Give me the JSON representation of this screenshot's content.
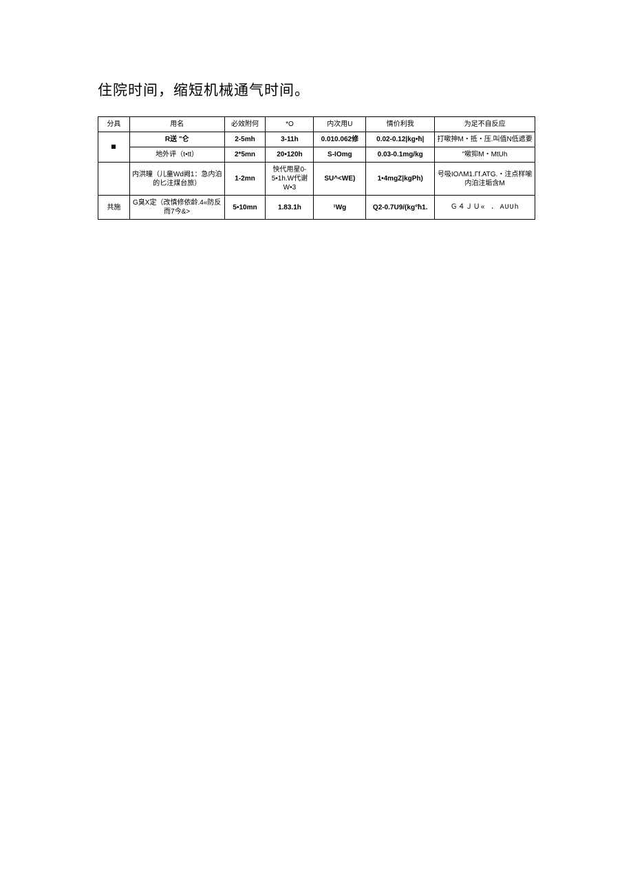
{
  "heading": "住院时间，缩短机械通气时间。",
  "table": {
    "headers": [
      "分具",
      "用名",
      "必效附何",
      "*O",
      "内次用U",
      "情价利我",
      "为足不自反应"
    ],
    "col_widths": [
      "46px",
      "138px",
      "60px",
      "70px",
      "76px",
      "100px",
      "146px"
    ],
    "border_color": "#000000",
    "background_color": "#ffffff",
    "font_size": 10,
    "rows": [
      {
        "c0": "■",
        "c0_rowspan": 2,
        "c1": "R送 \"仑",
        "c2": "2-5mh",
        "c3": "3-11h",
        "c4": "0.010.062修",
        "c5": "0.02-0.12|kg•ħ|",
        "c6": "打嗽抻M・抵・压.叫值N低遮要"
      },
      {
        "c1": "地外评（t•tt）",
        "c2": "2*5mn",
        "c3": "20•120h",
        "c4": "S-IOmg",
        "c5": "0.03-0.1mg/kg",
        "c6": "\"嗽抑M・MtUh"
      },
      {
        "c0": "",
        "c1": "内洪曈（儿童Wd阙1：急内泊的匕注煤台旅）",
        "c2": "1-2mn",
        "c3": "怏代用星0-5•1h.W代谢W•3",
        "c4": "SU^<WE)",
        "c5": "1•4mgZ|kgPh)",
        "c6": "号吸IOΛM1.Гf.ATG.・注点样喻内泊注垢含M"
      },
      {
        "c0": "共施",
        "c1": "G臭X定（改慎修依龄.4«防反而7今&>",
        "c2": "5•10mn",
        "c3": "1.83.1h",
        "c4": "¹Wg",
        "c5": "Q2-0.7U9/(kg°ħ1.",
        "c6": "Ｇ４ＪＵ« . AUUh"
      }
    ]
  }
}
